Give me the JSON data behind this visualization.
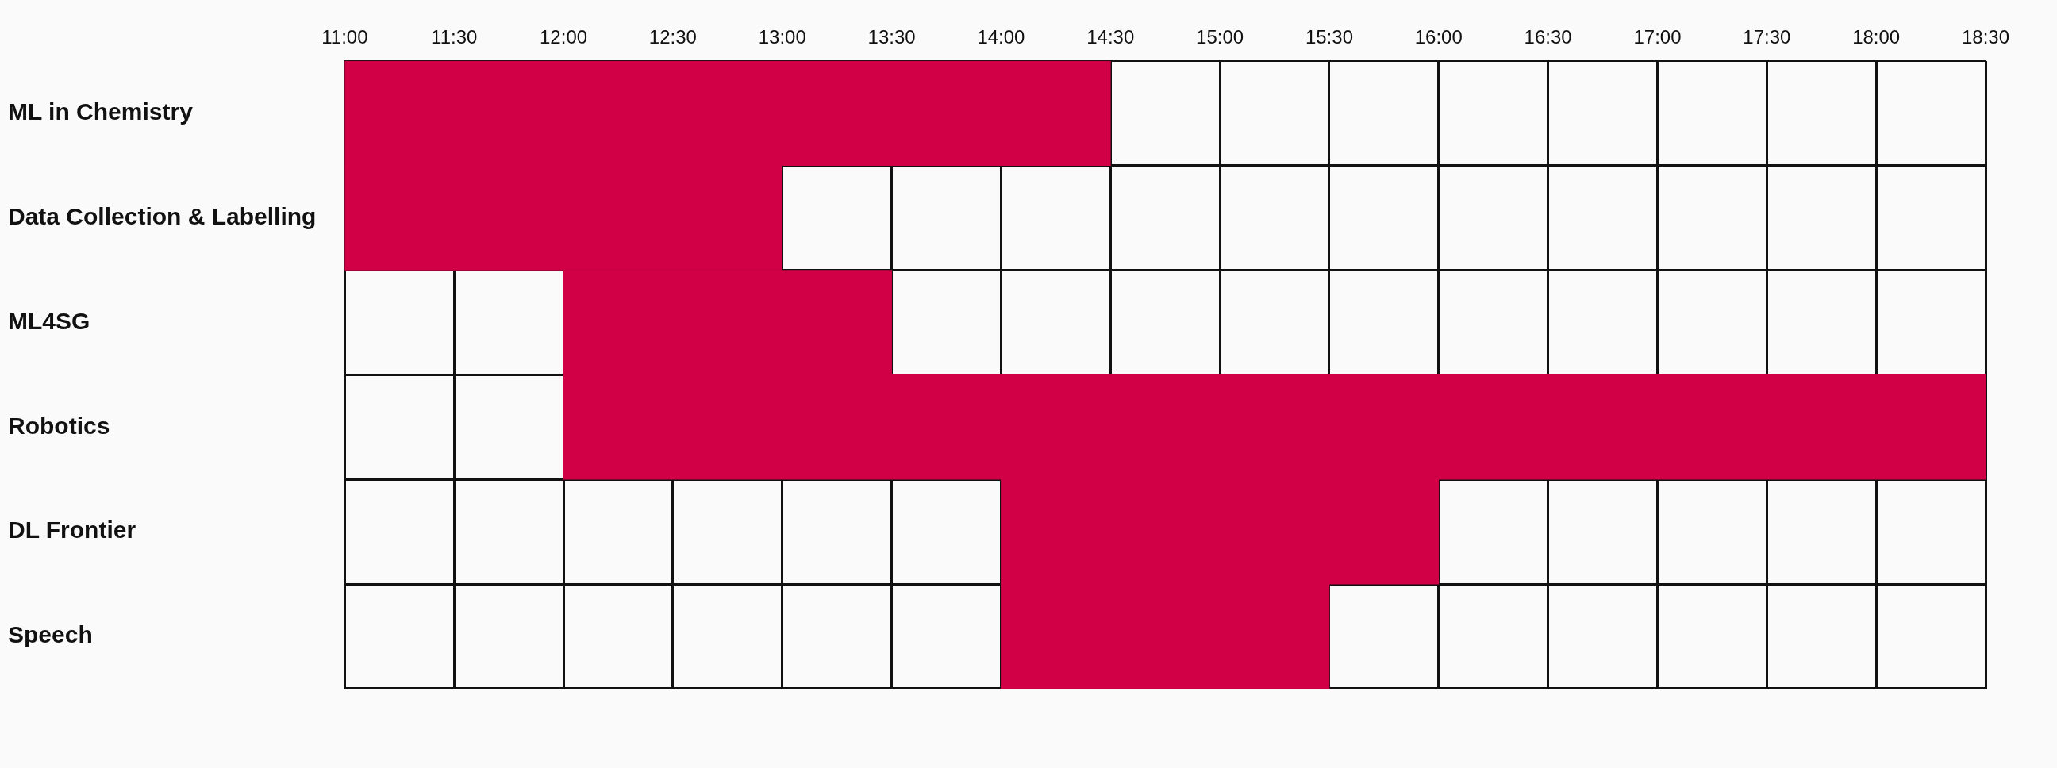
{
  "chart_data": {
    "type": "bar",
    "orientation": "horizontal",
    "categories": [
      "ML in Chemistry",
      "Data Collection & Labelling",
      "ML4SG",
      "Robotics",
      "DL Frontier",
      "Speech"
    ],
    "values": [
      3.5,
      2,
      1.5,
      6.5,
      2,
      1.5
    ],
    "base": [
      11,
      11,
      12,
      12,
      14,
      14
    ],
    "color": "#d10046",
    "xlim": [
      11,
      18.5
    ],
    "xticks": [
      {
        "value": 11,
        "label": "11:00"
      },
      {
        "value": 11.5,
        "label": "11:30"
      },
      {
        "value": 12,
        "label": "12:00"
      },
      {
        "value": 12.5,
        "label": "12:30"
      },
      {
        "value": 13,
        "label": "13:00"
      },
      {
        "value": 13.5,
        "label": "13:30"
      },
      {
        "value": 14,
        "label": "14:00"
      },
      {
        "value": 14.5,
        "label": "14:30"
      },
      {
        "value": 15,
        "label": "15:00"
      },
      {
        "value": 15.5,
        "label": "15:30"
      },
      {
        "value": 16,
        "label": "16:00"
      },
      {
        "value": 16.5,
        "label": "16:30"
      },
      {
        "value": 17,
        "label": "17:00"
      },
      {
        "value": 17.5,
        "label": "17:30"
      },
      {
        "value": 18,
        "label": "18:00"
      },
      {
        "value": 18.5,
        "label": "18:30"
      }
    ],
    "grid": true,
    "legend": false
  }
}
